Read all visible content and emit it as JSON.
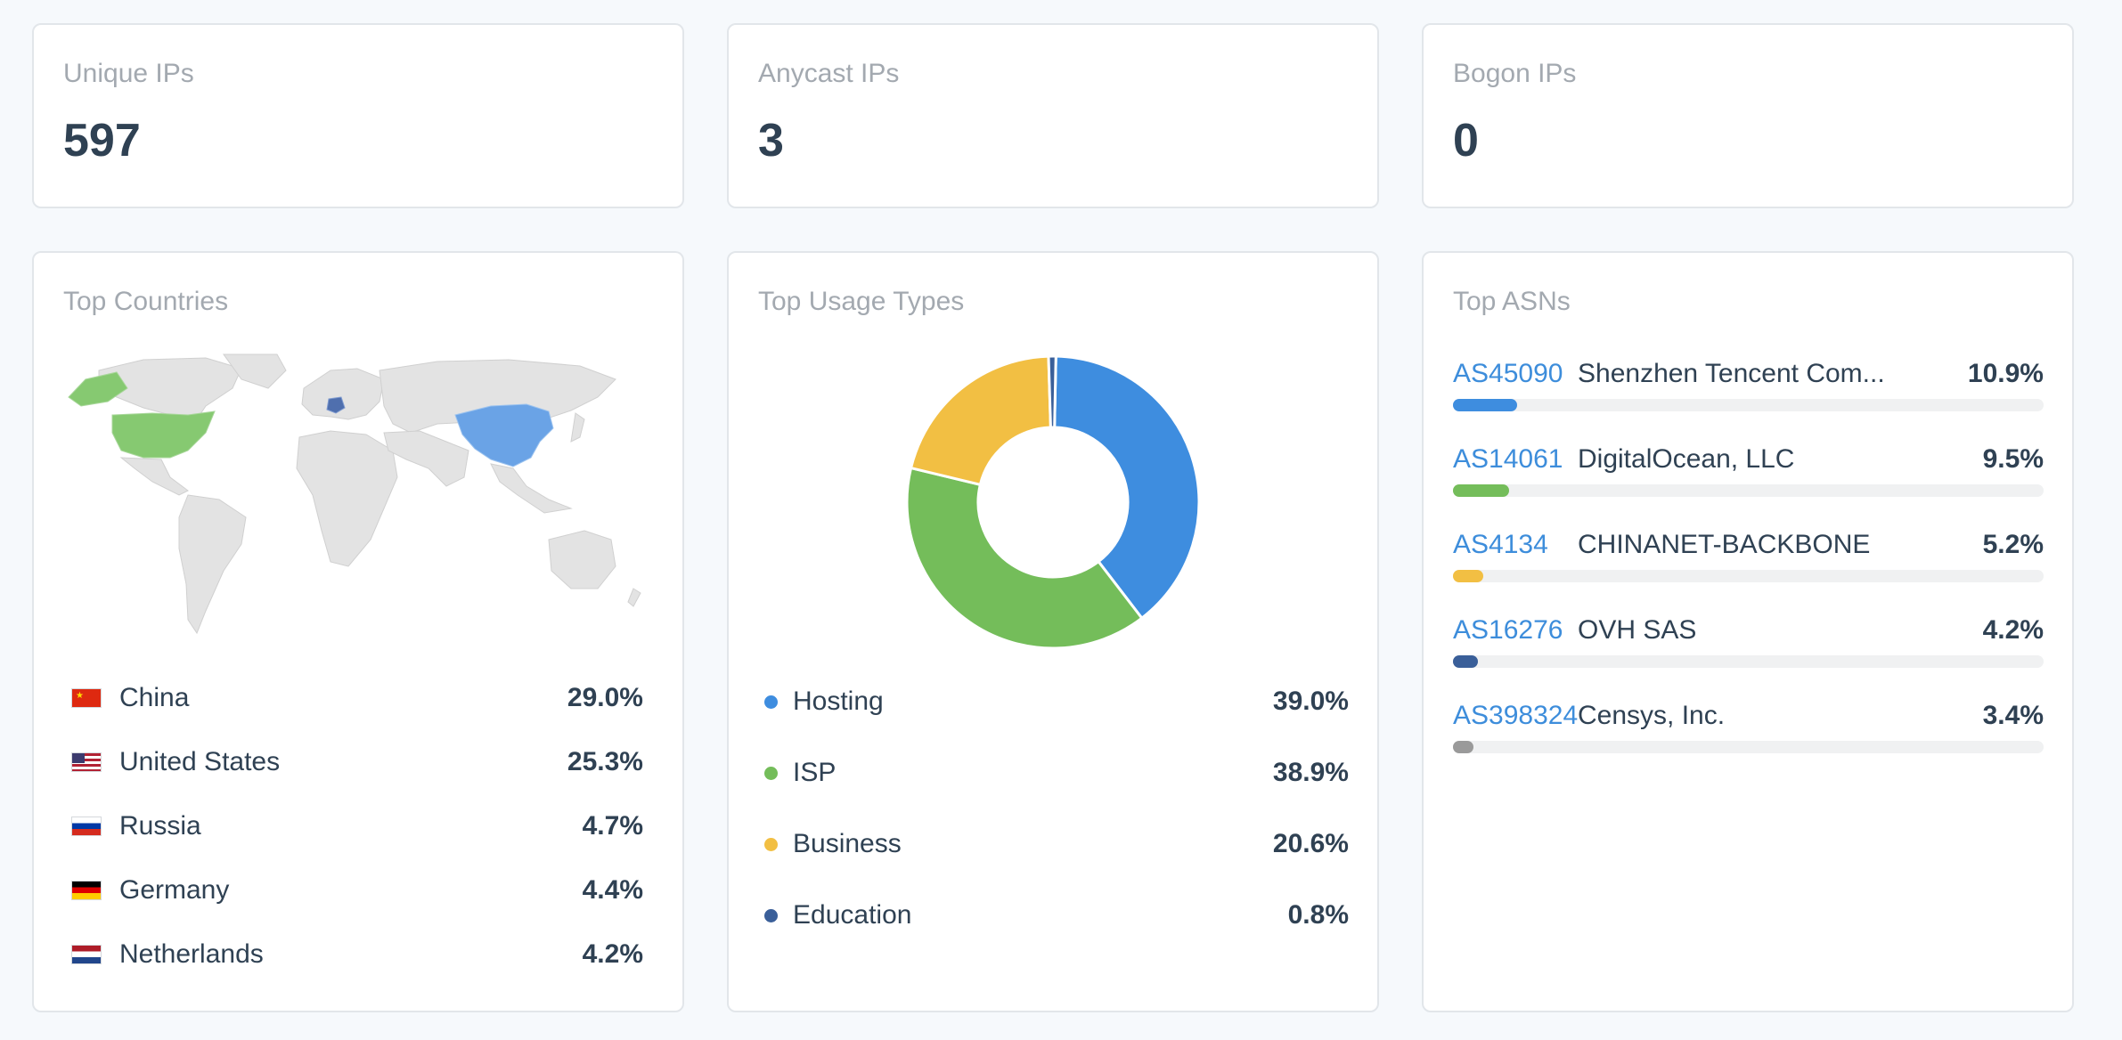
{
  "stats": [
    {
      "label": "Unique IPs",
      "value": "597"
    },
    {
      "label": "Anycast IPs",
      "value": "3"
    },
    {
      "label": "Bogon IPs",
      "value": "0"
    }
  ],
  "countries": {
    "title": "Top Countries",
    "highlighted_on_map": [
      "China",
      "United States",
      "Germany",
      "Canada"
    ],
    "items": [
      {
        "name": "China",
        "pct": "29.0%",
        "flag": "flag-china-icon"
      },
      {
        "name": "United States",
        "pct": "25.3%",
        "flag": "flag-us-icon"
      },
      {
        "name": "Russia",
        "pct": "4.7%",
        "flag": "flag-russia-icon"
      },
      {
        "name": "Germany",
        "pct": "4.4%",
        "flag": "flag-germany-icon"
      },
      {
        "name": "Netherlands",
        "pct": "4.2%",
        "flag": "flag-netherlands-icon"
      }
    ]
  },
  "usage": {
    "title": "Top Usage Types",
    "items": [
      {
        "name": "Hosting",
        "pct": "39.0%",
        "color": "#3e8ddf"
      },
      {
        "name": "ISP",
        "pct": "38.9%",
        "color": "#74bd5a"
      },
      {
        "name": "Business",
        "pct": "20.6%",
        "color": "#f2bf43"
      },
      {
        "name": "Education",
        "pct": "0.8%",
        "color": "#3a5f99"
      }
    ]
  },
  "asns": {
    "title": "Top ASNs",
    "items": [
      {
        "code": "AS45090",
        "name": "Shenzhen Tencent Com...",
        "pct": "10.9%",
        "color": "#3e8ddf"
      },
      {
        "code": "AS14061",
        "name": "DigitalOcean, LLC",
        "pct": "9.5%",
        "color": "#74bd5a"
      },
      {
        "code": "AS4134",
        "name": "CHINANET-BACKBONE",
        "pct": "5.2%",
        "color": "#f2bf43"
      },
      {
        "code": "AS16276",
        "name": "OVH SAS",
        "pct": "4.2%",
        "color": "#3a5f99"
      },
      {
        "code": "AS398324",
        "name": "Censys, Inc.",
        "pct": "3.4%",
        "color": "#9a9a9a"
      }
    ]
  },
  "chart_data": {
    "type": "pie",
    "categories": [
      "Hosting",
      "ISP",
      "Business",
      "Education"
    ],
    "values": [
      39.0,
      38.9,
      20.6,
      0.8
    ],
    "colors": [
      "#3e8ddf",
      "#74bd5a",
      "#f2bf43",
      "#3a5f99"
    ],
    "donut": true
  }
}
